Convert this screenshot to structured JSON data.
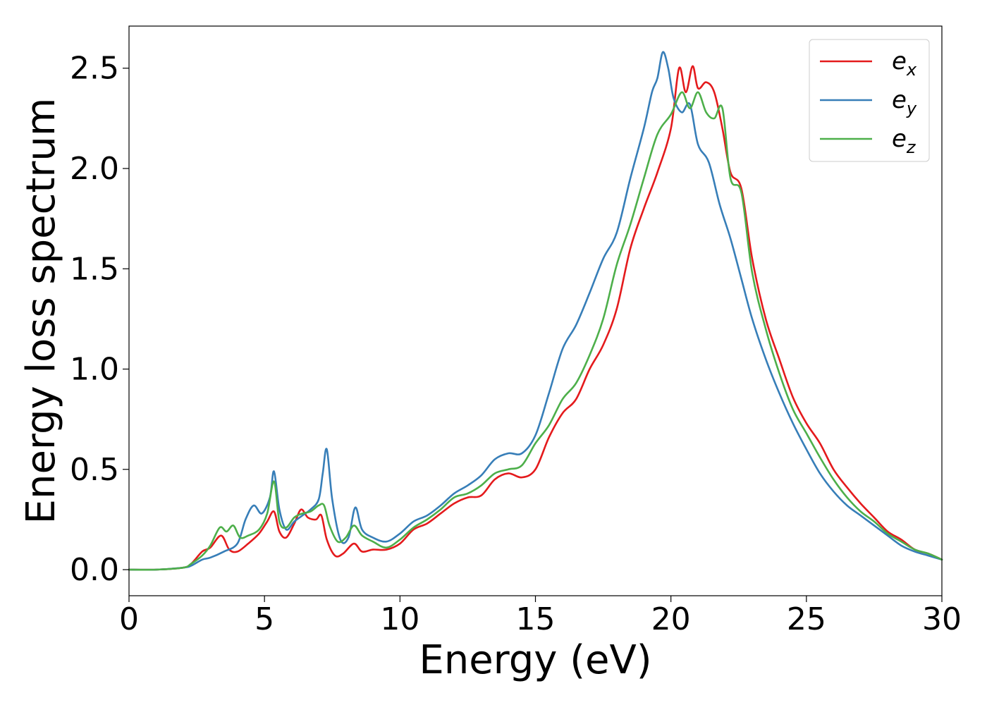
{
  "chart_data": {
    "type": "line",
    "xlabel": "Energy (eV)",
    "ylabel": "Energy loss spectrum",
    "xlim": [
      0,
      30
    ],
    "ylim": [
      -0.13,
      2.71
    ],
    "xticks": [
      0,
      5,
      10,
      15,
      20,
      25,
      30
    ],
    "xtick_labels": [
      "0",
      "5",
      "10",
      "15",
      "20",
      "25",
      "30"
    ],
    "yticks": [
      0.0,
      0.5,
      1.0,
      1.5,
      2.0,
      2.5
    ],
    "ytick_labels": [
      "0.0",
      "0.5",
      "1.0",
      "1.5",
      "2.0",
      "2.5"
    ],
    "grid": false,
    "legend_position": "top-right",
    "series": [
      {
        "name": "e",
        "subscript": "x",
        "color": "#e41a1c",
        "x": [
          0,
          1,
          2,
          2.3,
          2.7,
          3.0,
          3.4,
          3.7,
          4.0,
          4.4,
          4.8,
          5.1,
          5.35,
          5.55,
          5.8,
          6.1,
          6.35,
          6.6,
          6.9,
          7.1,
          7.3,
          7.6,
          7.9,
          8.3,
          8.6,
          9.0,
          9.5,
          10.0,
          10.5,
          11.0,
          11.5,
          12.0,
          12.5,
          13.0,
          13.5,
          14.0,
          14.5,
          15.0,
          15.5,
          16.0,
          16.5,
          17.0,
          17.5,
          18.0,
          18.5,
          19.0,
          19.5,
          20.0,
          20.3,
          20.55,
          20.8,
          21.0,
          21.3,
          21.6,
          21.9,
          22.2,
          22.6,
          23.0,
          23.5,
          24.0,
          24.5,
          25.0,
          25.5,
          26.0,
          26.5,
          27.0,
          27.5,
          28.0,
          28.5,
          29.0,
          29.5,
          30.0
        ],
        "values": [
          0.0,
          0.0,
          0.01,
          0.03,
          0.09,
          0.11,
          0.17,
          0.1,
          0.09,
          0.13,
          0.18,
          0.24,
          0.29,
          0.19,
          0.16,
          0.23,
          0.3,
          0.26,
          0.25,
          0.27,
          0.15,
          0.07,
          0.08,
          0.13,
          0.09,
          0.1,
          0.1,
          0.13,
          0.2,
          0.23,
          0.28,
          0.33,
          0.36,
          0.37,
          0.45,
          0.48,
          0.46,
          0.5,
          0.66,
          0.78,
          0.85,
          1.0,
          1.12,
          1.3,
          1.6,
          1.8,
          1.98,
          2.2,
          2.5,
          2.38,
          2.51,
          2.4,
          2.43,
          2.38,
          2.2,
          1.98,
          1.9,
          1.55,
          1.25,
          1.05,
          0.86,
          0.73,
          0.63,
          0.5,
          0.41,
          0.33,
          0.26,
          0.19,
          0.15,
          0.1,
          0.08,
          0.05
        ]
      },
      {
        "name": "e",
        "subscript": "y",
        "color": "#377eb8",
        "x": [
          0,
          1,
          2,
          2.3,
          2.7,
          3.0,
          3.5,
          4.0,
          4.3,
          4.6,
          4.9,
          5.2,
          5.35,
          5.55,
          5.8,
          6.1,
          6.4,
          6.7,
          7.0,
          7.15,
          7.3,
          7.5,
          7.8,
          8.1,
          8.35,
          8.6,
          9.0,
          9.5,
          10.0,
          10.5,
          11.0,
          11.5,
          12.0,
          12.5,
          13.0,
          13.5,
          14.0,
          14.5,
          15.0,
          15.5,
          16.0,
          16.5,
          17.0,
          17.5,
          18.0,
          18.5,
          19.0,
          19.3,
          19.5,
          19.7,
          19.9,
          20.1,
          20.4,
          20.7,
          21.0,
          21.4,
          21.8,
          22.2,
          22.6,
          23.0,
          23.5,
          24.0,
          24.5,
          25.0,
          25.5,
          26.0,
          26.5,
          27.0,
          27.5,
          28.0,
          28.5,
          29.0,
          29.5,
          30.0
        ],
        "values": [
          0.0,
          0.0,
          0.01,
          0.02,
          0.05,
          0.06,
          0.09,
          0.13,
          0.25,
          0.32,
          0.28,
          0.36,
          0.49,
          0.3,
          0.2,
          0.24,
          0.27,
          0.3,
          0.35,
          0.48,
          0.6,
          0.35,
          0.15,
          0.16,
          0.31,
          0.2,
          0.16,
          0.14,
          0.18,
          0.24,
          0.27,
          0.32,
          0.38,
          0.42,
          0.47,
          0.55,
          0.58,
          0.58,
          0.67,
          0.88,
          1.1,
          1.22,
          1.38,
          1.55,
          1.68,
          1.95,
          2.2,
          2.38,
          2.45,
          2.58,
          2.5,
          2.35,
          2.28,
          2.32,
          2.12,
          2.03,
          1.82,
          1.65,
          1.45,
          1.25,
          1.05,
          0.88,
          0.73,
          0.6,
          0.48,
          0.39,
          0.32,
          0.27,
          0.22,
          0.17,
          0.12,
          0.09,
          0.07,
          0.05
        ]
      },
      {
        "name": "e",
        "subscript": "z",
        "color": "#4daf4a",
        "x": [
          0,
          1,
          2,
          2.3,
          2.7,
          3.0,
          3.35,
          3.6,
          3.85,
          4.1,
          4.4,
          4.8,
          5.1,
          5.35,
          5.55,
          5.8,
          6.1,
          6.4,
          6.7,
          7.0,
          7.2,
          7.4,
          7.7,
          8.0,
          8.3,
          8.6,
          9.0,
          9.5,
          10.0,
          10.5,
          11.0,
          11.5,
          12.0,
          12.5,
          13.0,
          13.5,
          14.0,
          14.5,
          15.0,
          15.5,
          16.0,
          16.5,
          17.0,
          17.5,
          18.0,
          18.5,
          19.0,
          19.5,
          20.0,
          20.4,
          20.7,
          21.0,
          21.3,
          21.6,
          21.9,
          22.2,
          22.6,
          23.0,
          23.5,
          24.0,
          24.5,
          25.0,
          25.5,
          26.0,
          26.5,
          27.0,
          27.5,
          28.0,
          28.5,
          29.0,
          29.5,
          30.0
        ],
        "values": [
          0.0,
          0.0,
          0.01,
          0.03,
          0.07,
          0.12,
          0.21,
          0.19,
          0.22,
          0.16,
          0.17,
          0.2,
          0.28,
          0.44,
          0.24,
          0.21,
          0.26,
          0.28,
          0.29,
          0.32,
          0.32,
          0.22,
          0.14,
          0.16,
          0.22,
          0.17,
          0.14,
          0.11,
          0.15,
          0.21,
          0.25,
          0.3,
          0.36,
          0.38,
          0.42,
          0.48,
          0.5,
          0.52,
          0.63,
          0.72,
          0.85,
          0.93,
          1.07,
          1.25,
          1.52,
          1.72,
          1.95,
          2.17,
          2.27,
          2.38,
          2.3,
          2.38,
          2.28,
          2.25,
          2.3,
          1.95,
          1.88,
          1.48,
          1.2,
          0.98,
          0.8,
          0.68,
          0.56,
          0.45,
          0.36,
          0.29,
          0.24,
          0.18,
          0.14,
          0.1,
          0.08,
          0.05
        ]
      }
    ]
  }
}
